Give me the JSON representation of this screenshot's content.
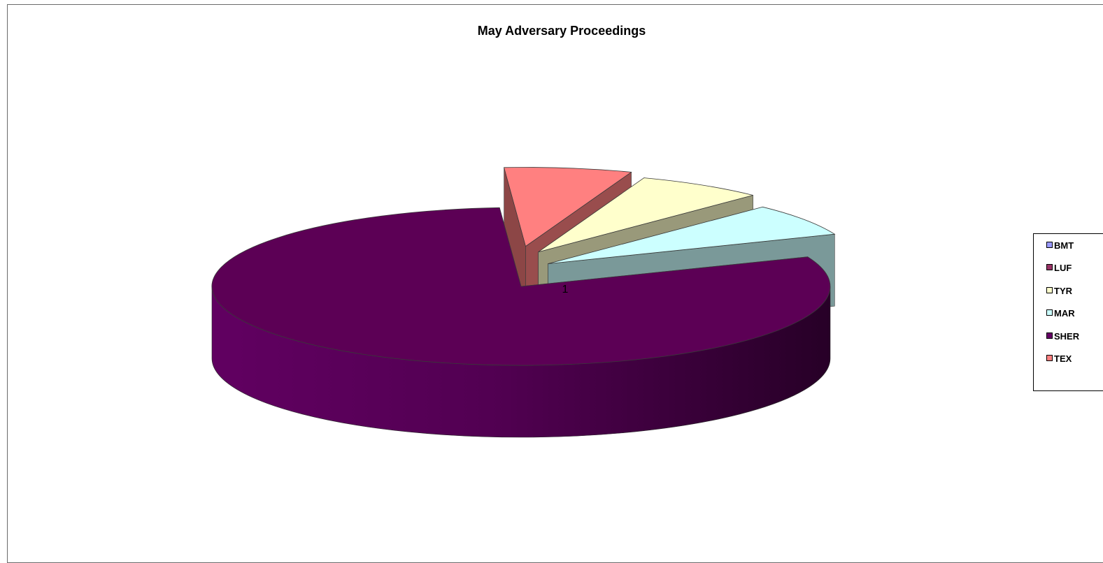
{
  "chart_data": {
    "type": "pie",
    "title": "May Adversary Proceedings",
    "category_label": "1",
    "series": [
      {
        "name": "BMT",
        "value": 0,
        "color": "#9999ff"
      },
      {
        "name": "LUF",
        "value": 0,
        "color": "#993366"
      },
      {
        "name": "TYR",
        "value": 1,
        "color": "#ffffcc"
      },
      {
        "name": "MAR",
        "value": 1,
        "color": "#ccffff"
      },
      {
        "name": "SHER",
        "value": 12,
        "color": "#660066"
      },
      {
        "name": "TEX",
        "value": 1,
        "color": "#ff8080"
      }
    ],
    "legend_position": "right"
  }
}
